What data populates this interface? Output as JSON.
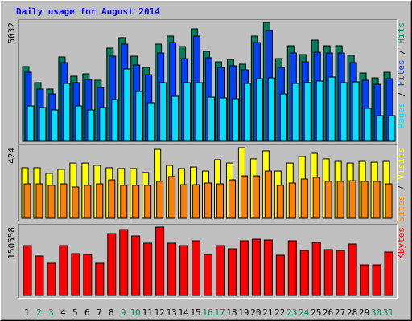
{
  "chart_data": [
    {
      "type": "bar",
      "title": "Daily usage for August 2014",
      "legend_separator": " / ",
      "ylim": [
        0,
        5032
      ],
      "yticks": [
        5032
      ],
      "series": [
        {
          "name": "Hits",
          "color": "#00805c",
          "values": [
            3162,
            2482,
            2210,
            3570,
            2754,
            2856,
            2584,
            3944,
            4386,
            3604,
            3128,
            4114,
            4454,
            4012,
            4760,
            3808,
            3366,
            3468,
            3264,
            4454,
            5032,
            3502,
            4046,
            3672,
            4284,
            4046,
            4046,
            3638,
            2890,
            2686,
            2924
          ]
        },
        {
          "name": "Files",
          "color": "#0040ff",
          "values": [
            2924,
            2210,
            2006,
            3332,
            2482,
            2618,
            2278,
            3604,
            4114,
            3230,
            2822,
            3740,
            4182,
            3502,
            4454,
            3536,
            3128,
            3196,
            3026,
            4182,
            4692,
            3128,
            3740,
            3366,
            3774,
            3740,
            3740,
            3332,
            2584,
            2414,
            2652
          ]
        },
        {
          "name": "Pages",
          "color": "#00e0ff",
          "values": [
            1496,
            1428,
            1326,
            2448,
            1496,
            1326,
            1428,
            1768,
            3060,
            2108,
            1632,
            2482,
            1904,
            2482,
            2482,
            1870,
            1836,
            1802,
            2448,
            2652,
            2686,
            2006,
            2448,
            2482,
            2550,
            2720,
            2482,
            2516,
            1394,
            1088,
            1088
          ]
        }
      ]
    },
    {
      "type": "bar",
      "legend_separator": " / ",
      "ylim": [
        0,
        424
      ],
      "yticks": [
        424
      ],
      "series": [
        {
          "name": "Visits",
          "color": "#ffff00",
          "values": [
            304,
            304,
            270,
            294,
            332,
            332,
            318,
            304,
            299,
            299,
            275,
            414,
            318,
            299,
            308,
            284,
            352,
            332,
            424,
            357,
            405,
            284,
            332,
            371,
            390,
            357,
            342,
            332,
            342,
            337,
            342
          ]
        },
        {
          "name": "Sites",
          "color": "#ff8000",
          "values": [
            207,
            207,
            198,
            207,
            188,
            198,
            207,
            231,
            198,
            198,
            198,
            222,
            251,
            202,
            202,
            212,
            207,
            231,
            255,
            255,
            284,
            198,
            212,
            236,
            246,
            222,
            222,
            226,
            222,
            222,
            207
          ]
        }
      ]
    },
    {
      "type": "bar",
      "ylim": [
        0,
        150558
      ],
      "yticks": [
        150558
      ],
      "categories": [
        "1",
        "2",
        "3",
        "4",
        "5",
        "6",
        "7",
        "8",
        "9",
        "10",
        "11",
        "12",
        "13",
        "14",
        "15",
        "16",
        "17",
        "18",
        "19",
        "20",
        "21",
        "22",
        "23",
        "24",
        "25",
        "26",
        "27",
        "28",
        "29",
        "30",
        "31"
      ],
      "category_colors": [
        "#000000",
        "#00805c",
        "#00805c",
        "#000000",
        "#000000",
        "#000000",
        "#000000",
        "#000000",
        "#00805c",
        "#00805c",
        "#000000",
        "#000000",
        "#000000",
        "#000000",
        "#000000",
        "#00805c",
        "#00805c",
        "#000000",
        "#000000",
        "#000000",
        "#000000",
        "#000000",
        "#00805c",
        "#00805c",
        "#000000",
        "#000000",
        "#000000",
        "#000000",
        "#000000",
        "#00805c",
        "#00805c"
      ],
      "series": [
        {
          "name": "KBytes",
          "color": "#ff0000",
          "values": [
            109802,
            86779,
            70840,
            109802,
            92092,
            90321,
            70840,
            136367,
            145222,
            131054,
            115115,
            150558,
            115115,
            109802,
            120428,
            90321,
            109802,
            102718,
            120428,
            123970,
            122199,
            88550,
            120428,
            99176,
            116886,
            100947,
            99176,
            113344,
            67298,
            67298,
            95634
          ]
        }
      ]
    }
  ]
}
